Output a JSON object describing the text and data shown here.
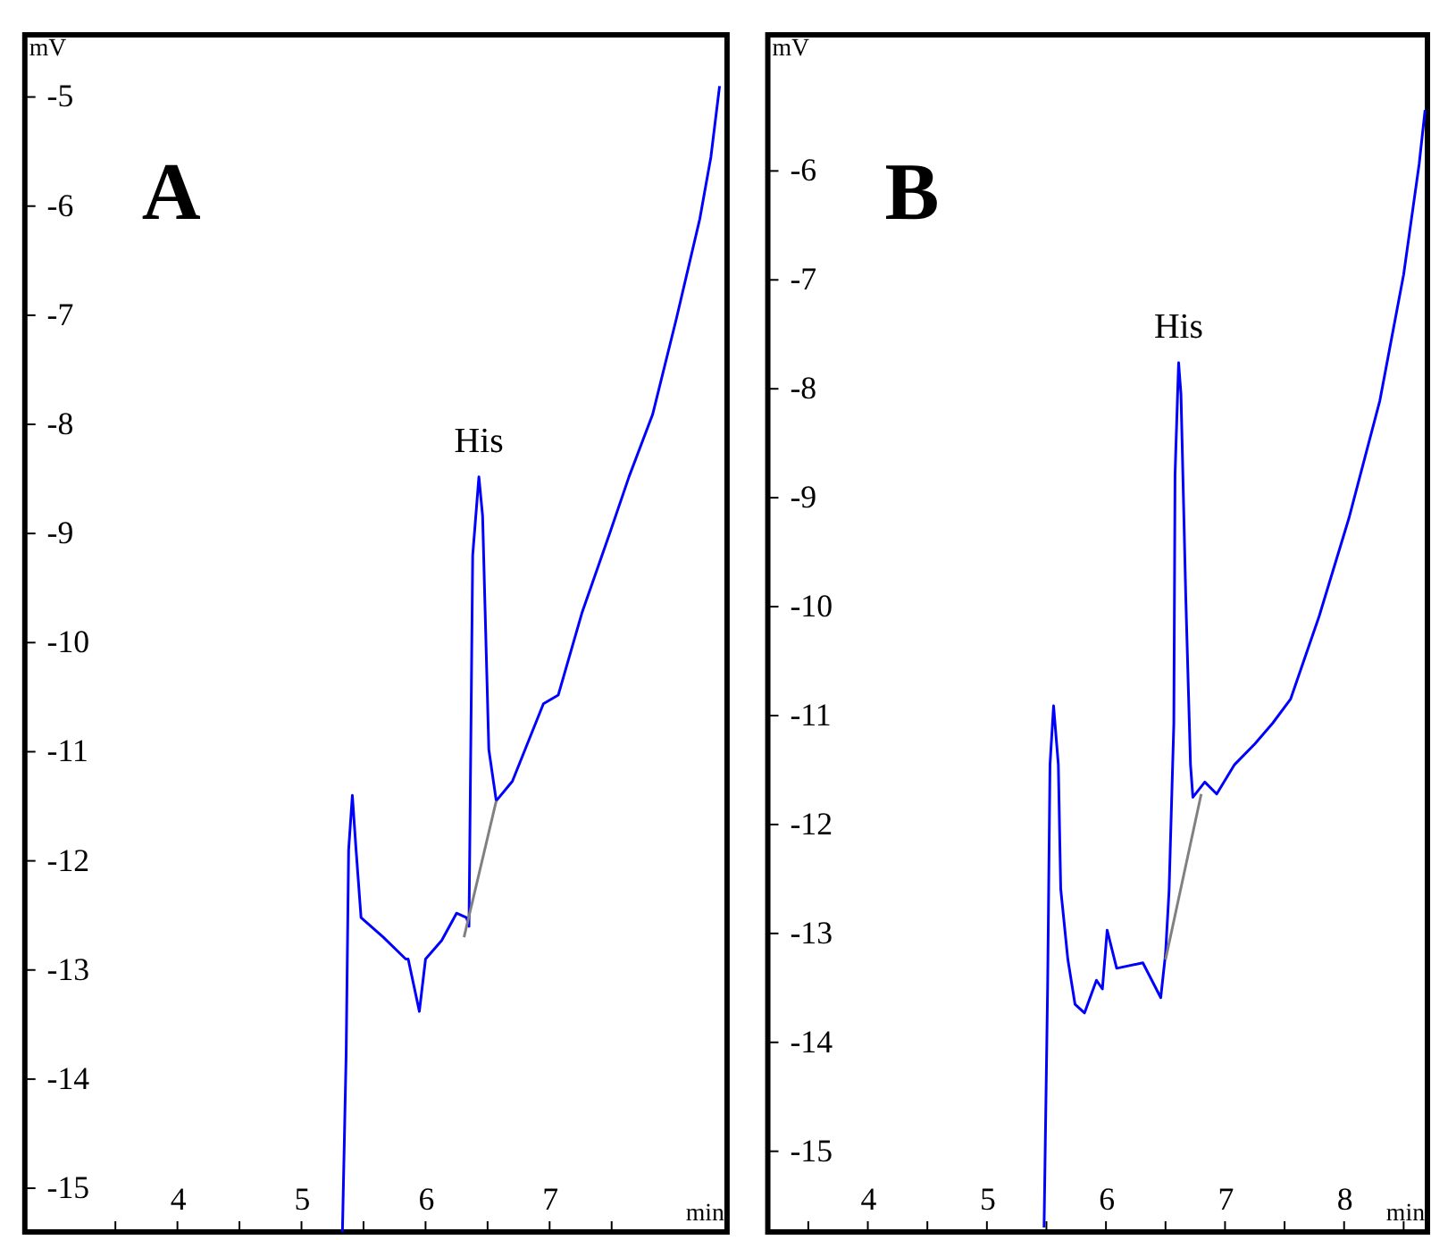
{
  "chart_data": [
    {
      "type": "line",
      "title": "A",
      "xlabel": "min",
      "ylabel": "mV",
      "xlim": [
        2.77,
        8.43
      ],
      "ylim": [
        -15.4,
        -4.43
      ],
      "xticks": [
        {
          "value": 3.5,
          "label": null
        },
        4,
        {
          "value": 4.5,
          "label": null
        },
        5,
        {
          "value": 5.5,
          "label": null
        },
        6,
        {
          "value": 6.5,
          "label": null
        },
        7,
        {
          "value": 7.5,
          "label": null
        }
      ],
      "yticks": [
        -5,
        -6,
        -7,
        -8,
        -9,
        -10,
        -11,
        -12,
        -13,
        -14,
        -15
      ],
      "grid": false,
      "series": [
        {
          "color": "#0000ff",
          "x": [
            5.33,
            5.36,
            5.38,
            5.41,
            5.44,
            5.48,
            5.66,
            5.84,
            5.86,
            5.95,
            6.0,
            6.13,
            6.25,
            6.33,
            6.35,
            6.38,
            6.43,
            6.46,
            6.48,
            6.51,
            6.57,
            6.7,
            6.95,
            7.07,
            7.26,
            7.49,
            7.64,
            7.83,
            8.02,
            8.21,
            8.3,
            8.37
          ],
          "values": [
            -15.4,
            -13.77,
            -11.9,
            -11.4,
            -11.9,
            -12.52,
            -12.7,
            -12.9,
            -12.9,
            -13.38,
            -12.9,
            -12.73,
            -12.48,
            -12.52,
            -12.6,
            -9.2,
            -8.48,
            -8.84,
            -9.7,
            -10.98,
            -11.45,
            -11.27,
            -10.56,
            -10.48,
            -9.73,
            -8.98,
            -8.48,
            -7.91,
            -7.04,
            -6.12,
            -5.55,
            -4.9
          ]
        },
        {
          "color": "#808080",
          "x": [
            6.31,
            6.57
          ],
          "values": [
            -12.7,
            -11.45
          ]
        }
      ],
      "annotations": [
        {
          "text": "His",
          "x": 6.43,
          "y": -8.48
        }
      ]
    },
    {
      "type": "line",
      "title": "B",
      "xlabel": "min",
      "ylabel": "mV",
      "xlim": [
        3.16,
        8.7
      ],
      "ylim": [
        -15.74,
        -4.75
      ],
      "xticks": [
        {
          "value": 3.5,
          "label": null
        },
        4,
        {
          "value": 4.5,
          "label": null
        },
        5,
        {
          "value": 5.5,
          "label": null
        },
        6,
        {
          "value": 6.5,
          "label": null
        },
        7,
        {
          "value": 7.5,
          "label": null
        },
        8,
        {
          "value": 8.5,
          "label": null
        }
      ],
      "yticks": [
        -6,
        -7,
        -8,
        -9,
        -10,
        -11,
        -12,
        -13,
        -14,
        -15
      ],
      "grid": false,
      "series": [
        {
          "color": "#0000ff",
          "x": [
            5.48,
            5.51,
            5.53,
            5.56,
            5.6,
            5.62,
            5.68,
            5.74,
            5.82,
            5.92,
            5.97,
            6.01,
            6.09,
            6.31,
            6.46,
            6.5,
            6.53,
            6.57,
            6.58,
            6.61,
            6.63,
            6.67,
            6.71,
            6.73,
            6.83,
            6.93,
            7.08,
            7.25,
            7.4,
            7.55,
            7.79,
            8.04,
            8.3,
            8.5,
            8.63,
            8.68
          ],
          "values": [
            -15.7,
            -13.49,
            -11.45,
            -10.91,
            -11.45,
            -12.59,
            -13.24,
            -13.65,
            -13.73,
            -13.43,
            -13.51,
            -12.97,
            -13.32,
            -13.27,
            -13.59,
            -13.19,
            -12.61,
            -11.07,
            -8.79,
            -7.76,
            -8.05,
            -9.9,
            -11.45,
            -11.75,
            -11.61,
            -11.72,
            -11.45,
            -11.26,
            -11.07,
            -10.85,
            -10.09,
            -9.19,
            -8.11,
            -6.95,
            -5.94,
            -5.44
          ]
        },
        {
          "color": "#808080",
          "x": [
            6.5,
            6.8
          ],
          "values": [
            -13.24,
            -11.72
          ]
        }
      ],
      "annotations": [
        {
          "text": "His",
          "x": 6.61,
          "y": -7.76
        }
      ]
    }
  ]
}
